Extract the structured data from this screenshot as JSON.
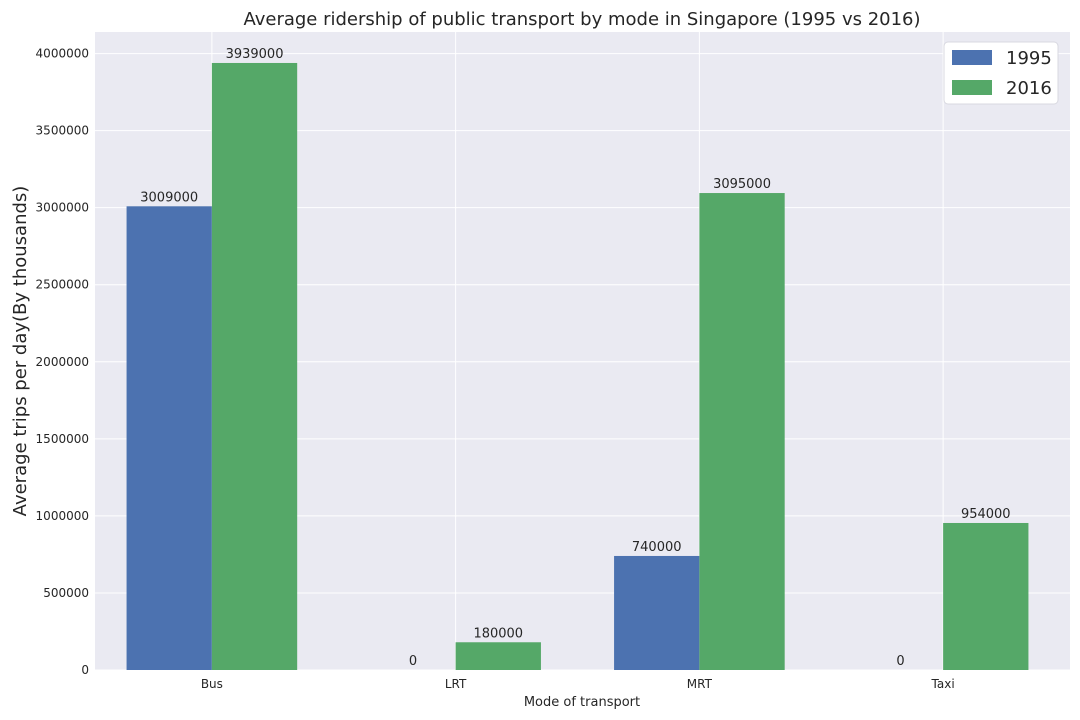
{
  "chart_data": {
    "type": "bar",
    "title": "Average ridership of public transport by mode in Singapore (1995 vs 2016)",
    "xlabel": "Mode of transport",
    "ylabel": "Average trips per day(By thousands)",
    "categories": [
      "Bus",
      "LRT",
      "MRT",
      "Taxi"
    ],
    "series": [
      {
        "name": "1995",
        "values": [
          3009000,
          0,
          740000,
          0
        ],
        "color": "#4C72B0"
      },
      {
        "name": "2016",
        "values": [
          3939000,
          180000,
          3095000,
          954000
        ],
        "color": "#55A868"
      }
    ],
    "ylim": [
      0,
      4140000
    ],
    "yticks": [
      0,
      500000,
      1000000,
      1500000,
      2000000,
      2500000,
      3000000,
      3500000,
      4000000
    ],
    "grid": true,
    "legend_position": "top-right",
    "background": "#EAEAF2"
  }
}
